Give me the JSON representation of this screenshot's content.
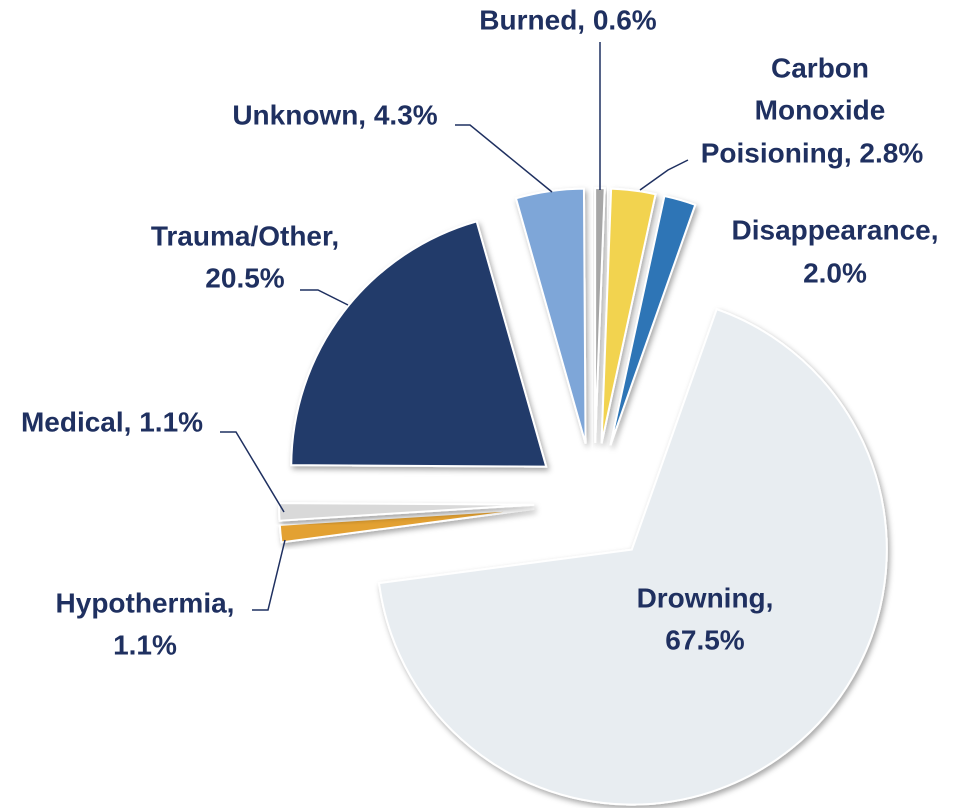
{
  "chart_data": {
    "type": "pie",
    "labels": [
      [
        "Burned, 0.6%"
      ],
      [
        "Carbon",
        "Monoxide",
        "Poisioning, 2.8%"
      ],
      [
        "Disappearance,",
        "2.0%"
      ],
      [
        "Drowning,",
        "67.5%"
      ],
      [
        "Hypothermia,",
        "1.1%"
      ],
      [
        "Medical, 1.1%"
      ],
      [
        "Trauma/Other,",
        "20.5%"
      ],
      [
        "Unknown, 4.3%"
      ]
    ],
    "values": [
      0.6,
      2.8,
      2.0,
      67.5,
      1.1,
      1.1,
      20.5,
      4.3
    ],
    "colors": [
      "#a6a6a6",
      "#f2d350",
      "#2e75b6",
      "#e8edf1",
      "#e3a132",
      "#d9d9d9",
      "#243a6b",
      "#7ea6d8"
    ]
  }
}
